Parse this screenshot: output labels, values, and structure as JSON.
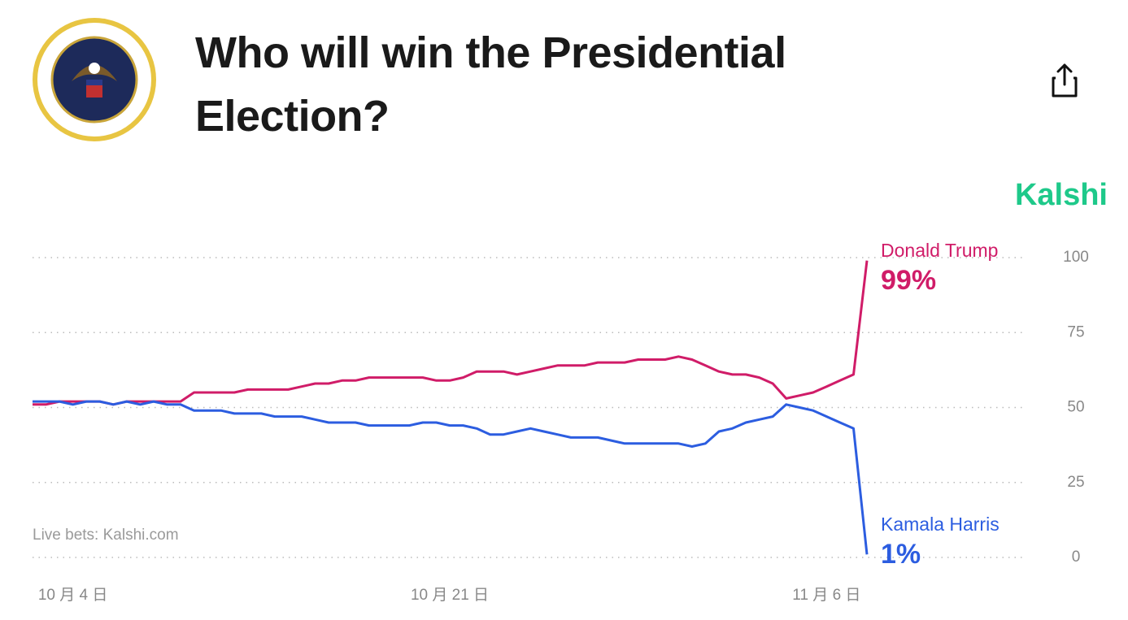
{
  "header": {
    "title": "Who will win the Presidential Election?",
    "brand": "Kalshi"
  },
  "source": "Live bets: Kalshi.com",
  "chart_data": {
    "type": "line",
    "categories": [
      null,
      null,
      null,
      "10 月 4 日",
      null,
      null,
      null,
      null,
      null,
      null,
      null,
      null,
      null,
      null,
      null,
      null,
      null,
      null,
      null,
      null,
      null,
      null,
      null,
      null,
      null,
      null,
      null,
      null,
      null,
      null,
      null,
      "10 月 21 日",
      null,
      null,
      null,
      null,
      null,
      null,
      null,
      null,
      null,
      null,
      null,
      null,
      null,
      null,
      null,
      null,
      null,
      null,
      null,
      null,
      null,
      null,
      null,
      null,
      null,
      null,
      null,
      "11 月 6 日",
      null,
      null,
      null
    ],
    "series": [
      {
        "name": "Donald Trump",
        "color": "#d01c68",
        "current": 99,
        "current_label": "99%",
        "values": [
          51,
          51,
          52,
          52,
          52,
          52,
          51,
          52,
          52,
          52,
          52,
          52,
          55,
          55,
          55,
          55,
          56,
          56,
          56,
          56,
          57,
          58,
          58,
          59,
          59,
          60,
          60,
          60,
          60,
          60,
          59,
          59,
          60,
          62,
          62,
          62,
          61,
          62,
          63,
          64,
          64,
          64,
          65,
          65,
          65,
          66,
          66,
          66,
          67,
          66,
          64,
          62,
          61,
          61,
          60,
          58,
          53,
          54,
          55,
          57,
          59,
          61,
          99
        ]
      },
      {
        "name": "Kamala Harris",
        "color": "#2c5de0",
        "current": 1,
        "current_label": "1%",
        "values": [
          52,
          52,
          52,
          51,
          52,
          52,
          51,
          52,
          51,
          52,
          51,
          51,
          49,
          49,
          49,
          48,
          48,
          48,
          47,
          47,
          47,
          46,
          45,
          45,
          45,
          44,
          44,
          44,
          44,
          45,
          45,
          44,
          44,
          43,
          41,
          41,
          42,
          43,
          42,
          41,
          40,
          40,
          40,
          39,
          38,
          38,
          38,
          38,
          38,
          37,
          38,
          42,
          43,
          45,
          46,
          47,
          51,
          50,
          49,
          47,
          45,
          43,
          1
        ]
      }
    ],
    "ylim": [
      0,
      100
    ],
    "yticks": [
      0,
      25,
      50,
      75,
      100
    ],
    "grid": true
  }
}
